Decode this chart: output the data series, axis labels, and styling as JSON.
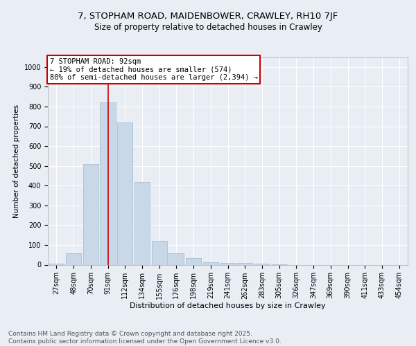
{
  "title1": "7, STOPHAM ROAD, MAIDENBOWER, CRAWLEY, RH10 7JF",
  "title2": "Size of property relative to detached houses in Crawley",
  "xlabel": "Distribution of detached houses by size in Crawley",
  "ylabel": "Number of detached properties",
  "bar_labels": [
    "27sqm",
    "48sqm",
    "70sqm",
    "91sqm",
    "112sqm",
    "134sqm",
    "155sqm",
    "176sqm",
    "198sqm",
    "219sqm",
    "241sqm",
    "262sqm",
    "283sqm",
    "305sqm",
    "326sqm",
    "347sqm",
    "369sqm",
    "390sqm",
    "411sqm",
    "433sqm",
    "454sqm"
  ],
  "bar_values": [
    7,
    57,
    510,
    820,
    720,
    420,
    120,
    57,
    35,
    13,
    10,
    10,
    5,
    3,
    0,
    0,
    0,
    0,
    0,
    0,
    0
  ],
  "bar_color": "#c8d8e8",
  "bar_edge_color": "#a0b8c8",
  "highlight_index": 3,
  "red_line_color": "#cc0000",
  "annotation_text": "7 STOPHAM ROAD: 92sqm\n← 19% of detached houses are smaller (574)\n80% of semi-detached houses are larger (2,394) →",
  "annotation_box_color": "#ffffff",
  "annotation_border_color": "#cc0000",
  "ylim": [
    0,
    1050
  ],
  "yticks": [
    0,
    100,
    200,
    300,
    400,
    500,
    600,
    700,
    800,
    900,
    1000
  ],
  "background_color": "#e8eef4",
  "footer_text": "Contains HM Land Registry data © Crown copyright and database right 2025.\nContains public sector information licensed under the Open Government Licence v3.0.",
  "grid_color": "#ffffff",
  "title_fontsize": 9.5,
  "subtitle_fontsize": 8.5,
  "annotation_fontsize": 7.5,
  "footer_fontsize": 6.5,
  "xlabel_fontsize": 8,
  "ylabel_fontsize": 7.5,
  "tick_fontsize": 7
}
